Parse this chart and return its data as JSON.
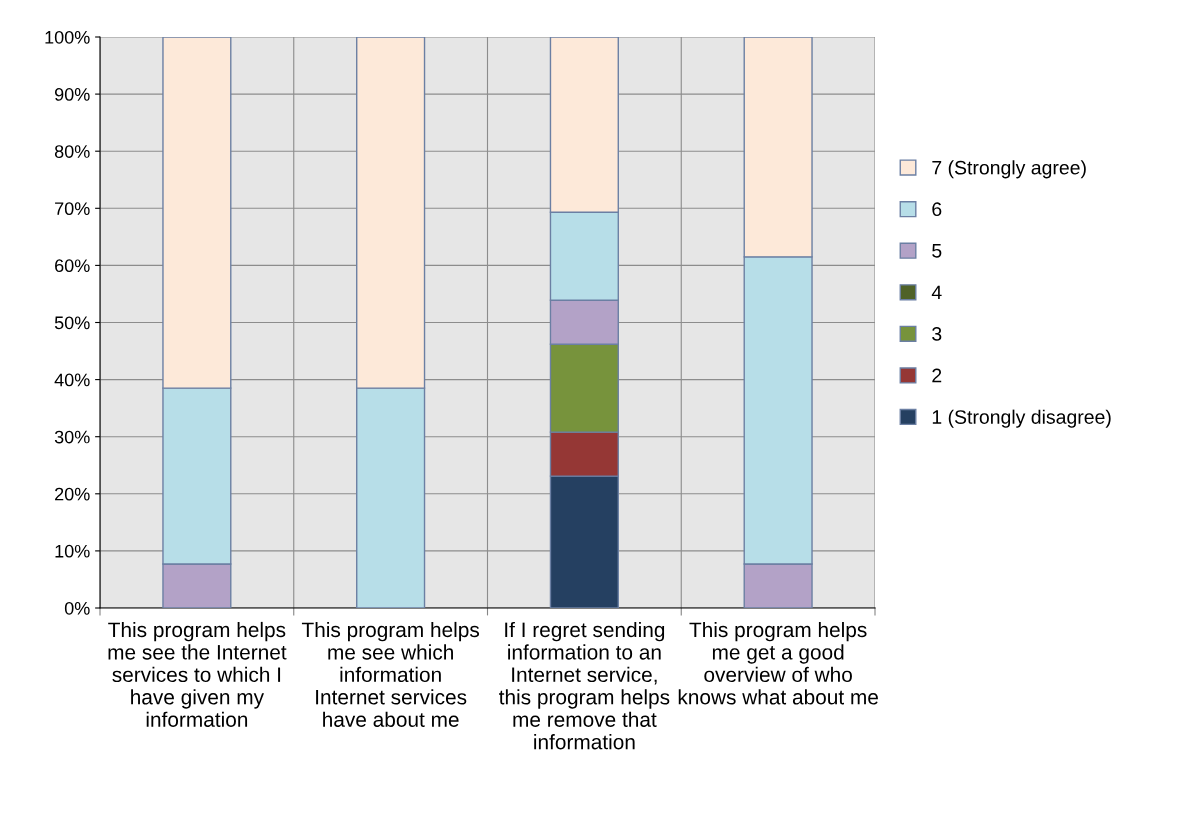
{
  "chart_data": {
    "type": "bar",
    "stacked": true,
    "categories": [
      "This program helps me see the Internet services to which I have given my information",
      "This program helps me see which information Internet services have about me",
      "If I regret sending information to an Internet service, this program helps me remove that information",
      "This program helps me get a good overview of who knows what about me"
    ],
    "series": [
      {
        "name": "1 (Strongly disagree)",
        "color": "#254061",
        "values": [
          0,
          0,
          23.1,
          0
        ]
      },
      {
        "name": "2",
        "color": "#953735",
        "values": [
          0,
          0,
          7.7,
          0
        ]
      },
      {
        "name": "3",
        "color": "#77933c",
        "values": [
          0,
          0,
          15.4,
          0
        ]
      },
      {
        "name": "4",
        "color": "#4f6228",
        "values": [
          0,
          0,
          0,
          0
        ]
      },
      {
        "name": "5",
        "color": "#b3a2c7",
        "values": [
          7.7,
          0,
          7.7,
          7.7
        ]
      },
      {
        "name": "6",
        "color": "#b7dee8",
        "values": [
          30.8,
          38.5,
          15.4,
          53.8
        ]
      },
      {
        "name": "7 (Strongly agree)",
        "color": "#fde9d9",
        "values": [
          61.5,
          61.5,
          30.7,
          38.5
        ]
      }
    ],
    "ylim": [
      0,
      100
    ],
    "yticks": [
      {
        "value": 0,
        "label": "0%"
      },
      {
        "value": 10,
        "label": "10%"
      },
      {
        "value": 20,
        "label": "20%"
      },
      {
        "value": 30,
        "label": "30%"
      },
      {
        "value": 40,
        "label": "40%"
      },
      {
        "value": 50,
        "label": "50%"
      },
      {
        "value": 60,
        "label": "60%"
      },
      {
        "value": 70,
        "label": "70%"
      },
      {
        "value": 80,
        "label": "80%"
      },
      {
        "value": 90,
        "label": "90%"
      },
      {
        "value": 100,
        "label": "100%"
      }
    ],
    "grid": true,
    "legend": "right"
  }
}
